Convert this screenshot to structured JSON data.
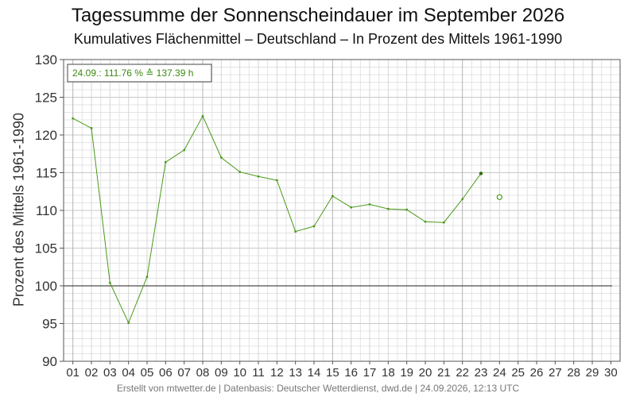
{
  "chart_data": {
    "type": "line",
    "title": "Tagessumme der Sonnenscheindauer im September 2026",
    "subtitle": "Kumulatives Flächenmittel – Deutschland – In Prozent des Mittels 1961-1990",
    "xlabel": "",
    "ylabel": "Prozent des Mittels 1961-1990",
    "categories": [
      "01",
      "02",
      "03",
      "04",
      "05",
      "06",
      "07",
      "08",
      "09",
      "10",
      "11",
      "12",
      "13",
      "14",
      "15",
      "16",
      "17",
      "18",
      "19",
      "20",
      "21",
      "22",
      "23",
      "24",
      "25",
      "26",
      "27",
      "28",
      "29",
      "30"
    ],
    "series": [
      {
        "values": [
          122.2,
          120.9,
          100.4,
          95.1,
          101.2,
          116.4,
          118.0,
          122.5,
          117.0,
          115.1,
          114.5,
          114.0,
          107.2,
          107.9,
          111.9,
          110.4,
          110.8,
          110.2,
          110.1,
          108.5,
          108.4,
          111.5,
          114.9,
          null,
          null,
          null,
          null,
          null,
          null,
          null
        ]
      }
    ],
    "projection": {
      "x": "24",
      "y": 111.76
    },
    "reference_line": 100,
    "ylim": [
      90,
      130
    ],
    "yticks": [
      90,
      95,
      100,
      105,
      110,
      115,
      120,
      125,
      130
    ],
    "grid": true,
    "annotation": "24.09.: 111.76 % ≙ 137.39 h",
    "colors": {
      "line": "#4a9a1a",
      "reference": "#222222",
      "grid_major": "#c8c8c8",
      "grid_minor": "#e4e4e4"
    }
  },
  "footer": "Erstellt von mtwetter.de | Datenbasis: Deutscher Wetterdienst, dwd.de | 24.09.2026, 12:13 UTC"
}
